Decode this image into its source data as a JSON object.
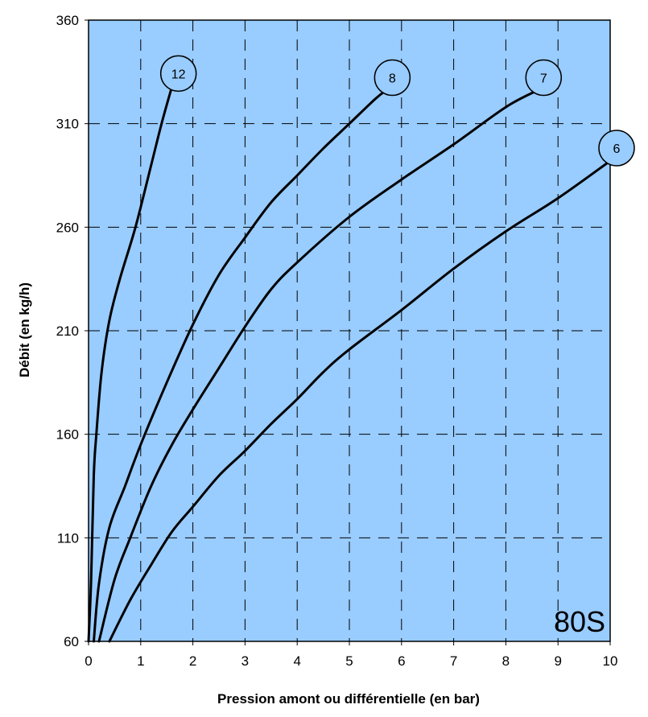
{
  "chart_data": {
    "type": "line",
    "title": "",
    "xlabel": "Pression amont ou différentielle (en bar)",
    "ylabel": "Débit (en kg/h)",
    "xlim": [
      0,
      10
    ],
    "ylim": [
      60,
      360
    ],
    "x_ticks": [
      "0",
      "1",
      "2",
      "3",
      "4",
      "5",
      "6",
      "7",
      "8",
      "9",
      "10"
    ],
    "y_ticks": [
      "60",
      "110",
      "160",
      "210",
      "260",
      "310",
      "360"
    ],
    "grid": true,
    "plot_background": "#99ccff",
    "line_color": "#000000",
    "corner_label": "80S",
    "series": [
      {
        "name": "12",
        "x": [
          0.0,
          0.05,
          0.1,
          0.15,
          0.25,
          0.4,
          0.6,
          0.9,
          1.2,
          1.4,
          1.6
        ],
        "y": [
          60,
          90,
          140,
          160,
          190,
          215,
          235,
          260,
          290,
          310,
          328
        ]
      },
      {
        "name": "8",
        "x": [
          0.1,
          0.2,
          0.4,
          0.7,
          1.0,
          1.5,
          2.0,
          2.5,
          3.0,
          3.5,
          4.0,
          4.5,
          5.0,
          5.5,
          5.7
        ],
        "y": [
          60,
          88,
          115,
          135,
          155,
          185,
          213,
          237,
          255,
          272,
          285,
          298,
          310,
          322,
          326
        ]
      },
      {
        "name": "7",
        "x": [
          0.2,
          0.5,
          0.8,
          1.2,
          1.6,
          2.0,
          2.5,
          3.0,
          3.5,
          4.0,
          5.0,
          6.0,
          7.0,
          8.0,
          8.6
        ],
        "y": [
          60,
          90,
          110,
          135,
          155,
          172,
          192,
          212,
          230,
          243,
          265,
          283,
          300,
          318,
          326
        ]
      },
      {
        "name": "6",
        "x": [
          0.4,
          0.8,
          1.2,
          1.6,
          2.0,
          2.5,
          3.0,
          3.5,
          4.0,
          4.5,
          5.0,
          6.0,
          7.0,
          8.0,
          9.0,
          10.0
        ],
        "y": [
          60,
          80,
          97,
          113,
          125,
          140,
          152,
          165,
          177,
          190,
          201,
          220,
          240,
          258,
          274,
          292
        ]
      }
    ]
  }
}
